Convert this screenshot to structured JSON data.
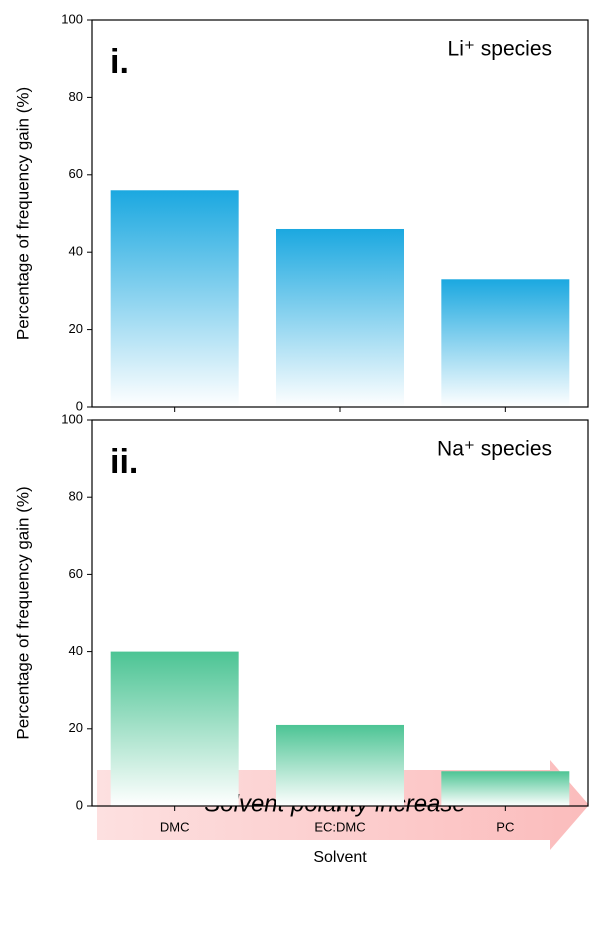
{
  "chart_data": [
    {
      "type": "bar",
      "panel_label": "i.",
      "annotation": "Li⁺ species",
      "ylabel": "Percentage of frequency gain (%)",
      "values": [
        56,
        46,
        33
      ],
      "color": "#1ba8e0",
      "ylim": [
        0,
        100
      ],
      "yticks": [
        0,
        20,
        40,
        60,
        80,
        100
      ]
    },
    {
      "type": "bar",
      "panel_label": "ii.",
      "annotation": "Na⁺ species",
      "ylabel": "Percentage of frequency gain (%)",
      "xlabel": "Solvent",
      "categories": [
        "DMC",
        "EC:DMC",
        "PC"
      ],
      "values": [
        40,
        21,
        9
      ],
      "color": "#4cc494",
      "ylim": [
        0,
        100
      ],
      "yticks": [
        0,
        20,
        40,
        60,
        80,
        100
      ]
    }
  ],
  "arrow_label": "Solvent polarity increase"
}
